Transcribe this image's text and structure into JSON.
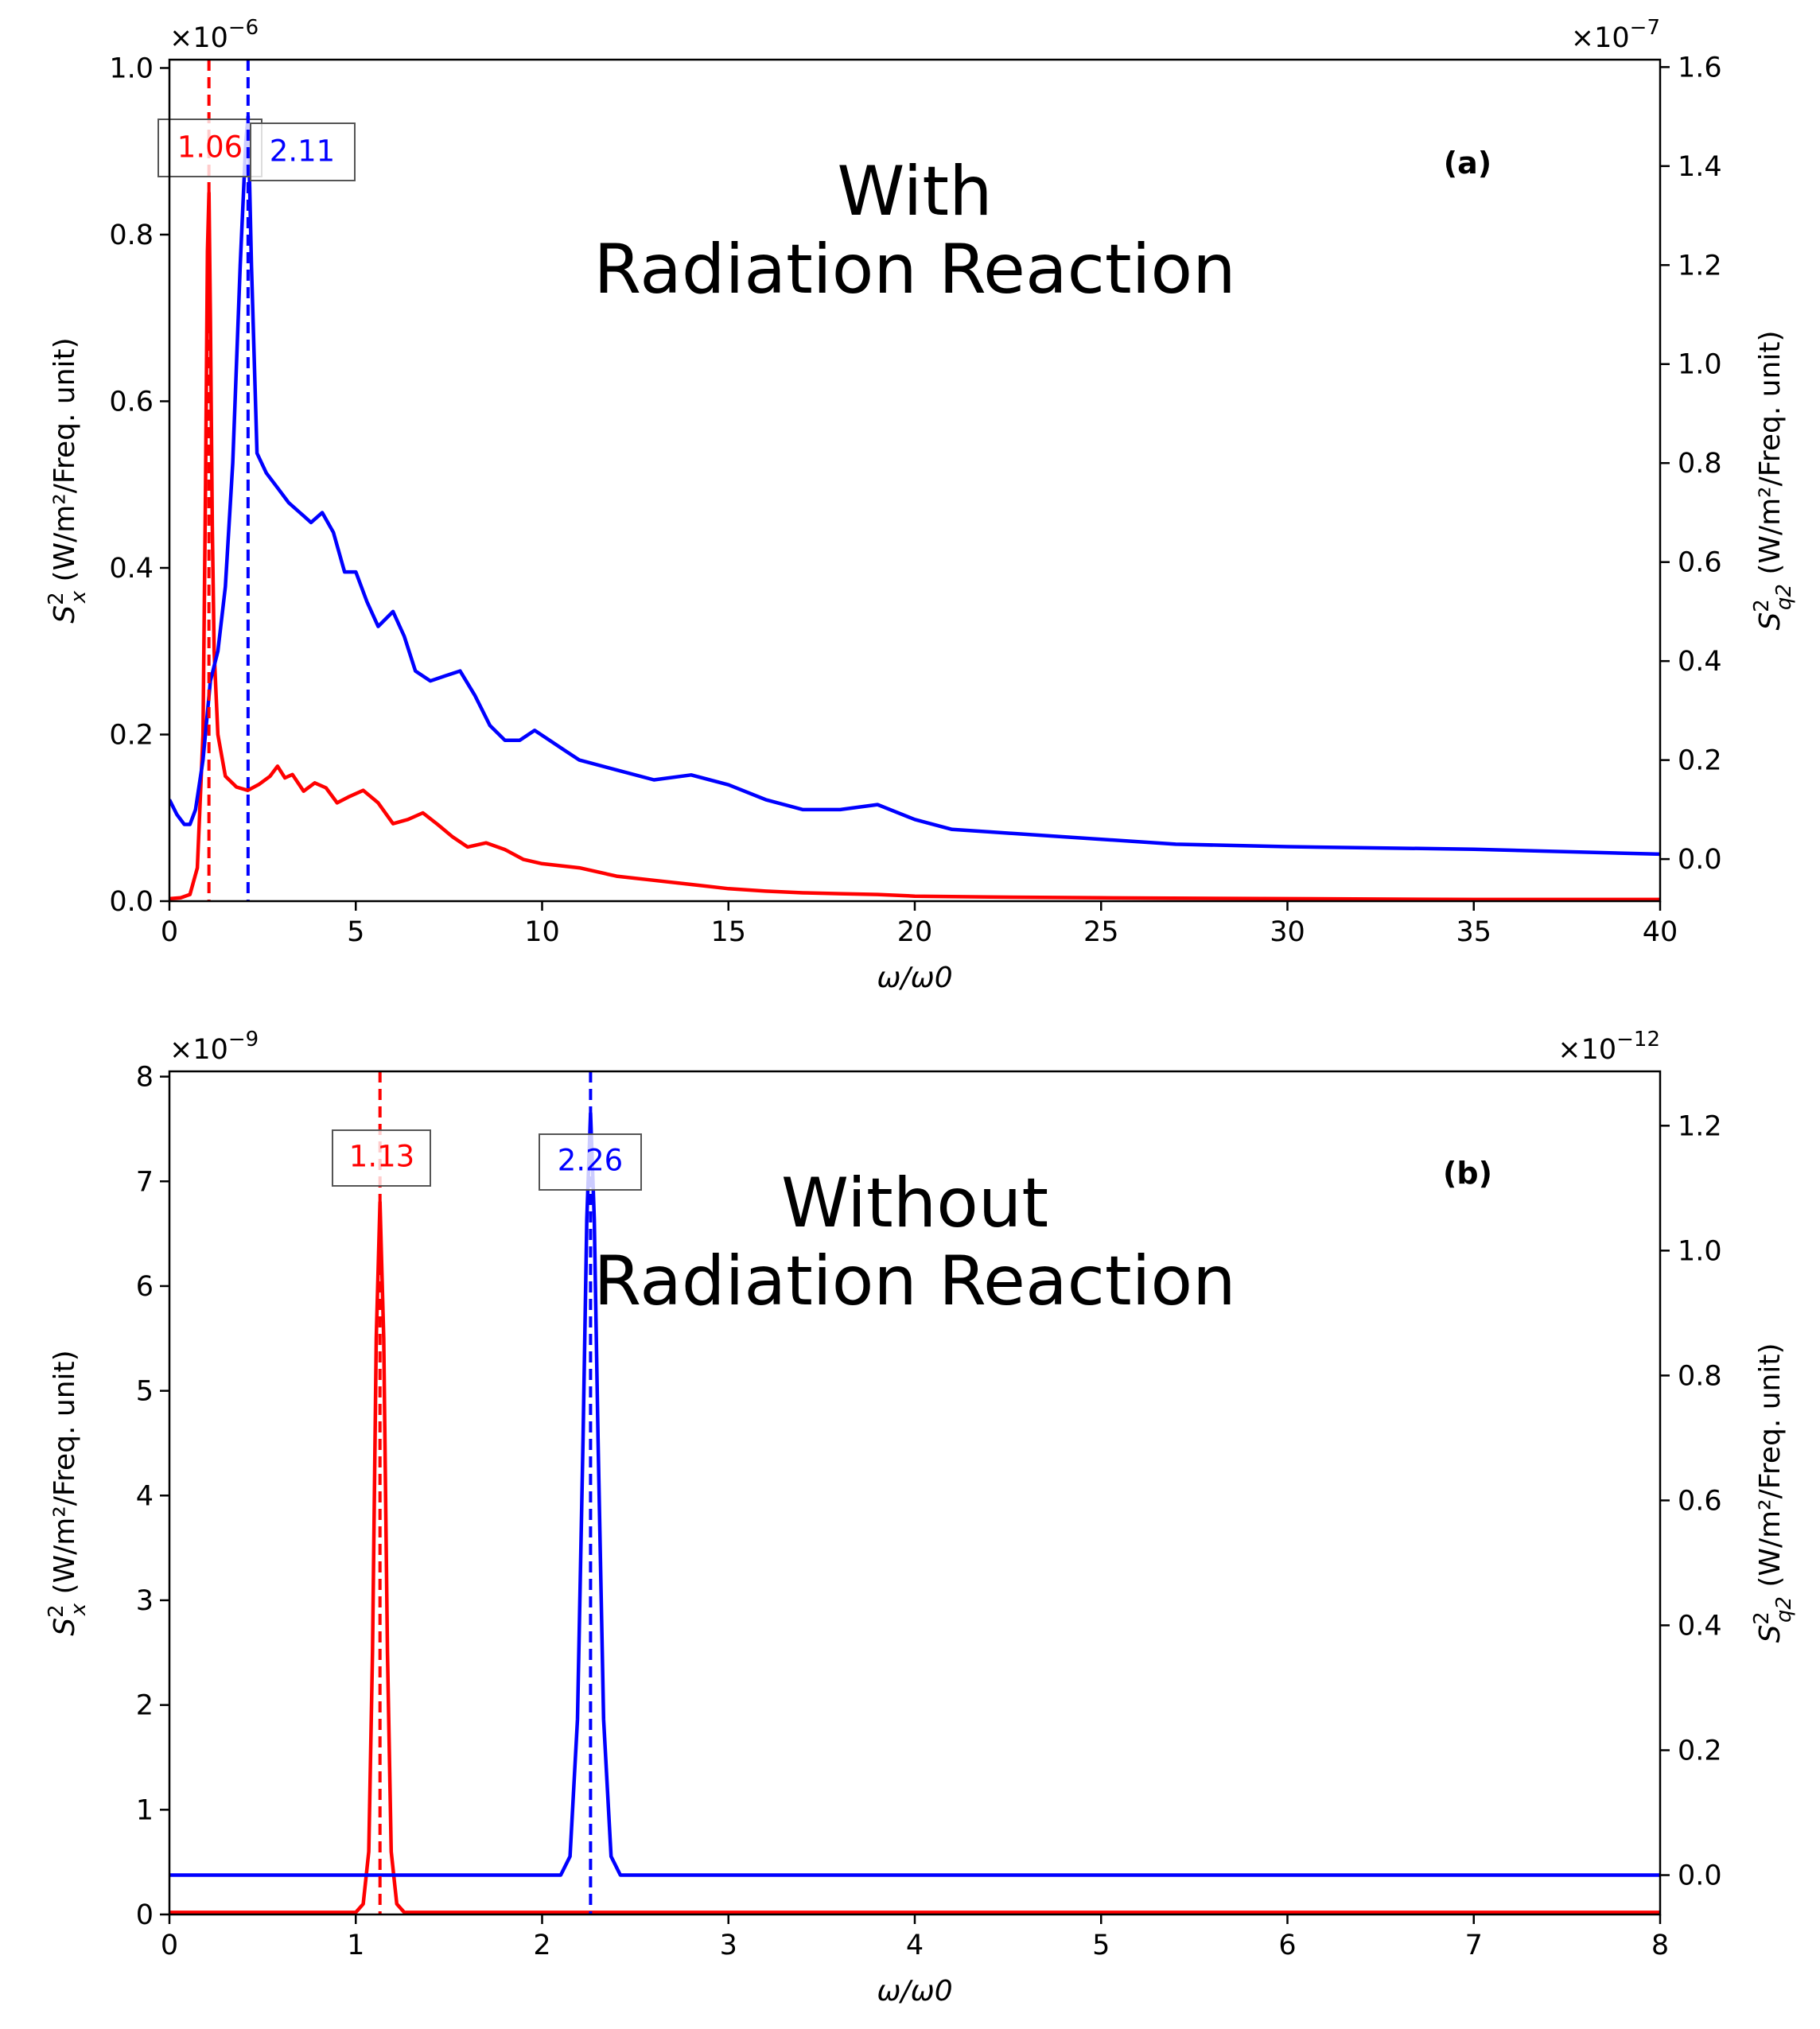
{
  "chart_data": [
    {
      "type": "line",
      "panel_label": "(a)",
      "annotation_lines": [
        "With",
        "Radiation Reaction"
      ],
      "xlabel": "ω/ω0",
      "x_ticks": [
        "0",
        "5",
        "10",
        "15",
        "20",
        "25",
        "30",
        "35",
        "40"
      ],
      "xlim": [
        0,
        40
      ],
      "y_left": {
        "label_prefix": "S",
        "label_sup": "2",
        "label_sub": "x",
        "label_units": " (W/m²/Freq. unit)",
        "multiplier": "×10",
        "multiplier_exp": "−6",
        "ylim": [
          0,
          1.01
        ],
        "ticks": [
          "0.0",
          "0.2",
          "0.4",
          "0.6",
          "0.8",
          "1.0"
        ],
        "color": "#ff0000"
      },
      "y_right": {
        "label_prefix": "S",
        "label_sup": "2",
        "label_sub": "q2",
        "label_units": " (W/m²/Freq. unit)",
        "multiplier": "×10",
        "multiplier_exp": "−7",
        "ylim": [
          -0.085,
          1.615
        ],
        "ticks": [
          "0.0",
          "0.2",
          "0.4",
          "0.6",
          "0.8",
          "1.0",
          "1.2",
          "1.4",
          "1.6"
        ],
        "color": "#0000ff"
      },
      "series": [
        {
          "axis": "left",
          "color": "#ff0000",
          "x": [
            0,
            0.3,
            0.55,
            0.75,
            0.9,
            0.97,
            1.02,
            1.06,
            1.1,
            1.15,
            1.2,
            1.3,
            1.5,
            1.8,
            2.1,
            2.4,
            2.7,
            2.9,
            3.1,
            3.3,
            3.6,
            3.9,
            4.2,
            4.5,
            4.8,
            5.2,
            5.6,
            6.0,
            6.4,
            6.8,
            7.2,
            7.6,
            8.0,
            8.5,
            9.0,
            9.5,
            10.0,
            11.0,
            12.0,
            13.0,
            14.0,
            15.0,
            16.0,
            17.0,
            18.0,
            19.0,
            20.0,
            22.0,
            25.0,
            30.0,
            35.0,
            40.0
          ],
          "y": [
            0.003,
            0.004,
            0.008,
            0.04,
            0.2,
            0.5,
            0.78,
            0.85,
            0.7,
            0.45,
            0.3,
            0.2,
            0.15,
            0.137,
            0.133,
            0.14,
            0.15,
            0.162,
            0.148,
            0.152,
            0.132,
            0.142,
            0.136,
            0.118,
            0.125,
            0.133,
            0.118,
            0.093,
            0.098,
            0.106,
            0.092,
            0.077,
            0.065,
            0.07,
            0.062,
            0.05,
            0.045,
            0.04,
            0.03,
            0.025,
            0.02,
            0.015,
            0.012,
            0.01,
            0.009,
            0.008,
            0.006,
            0.005,
            0.004,
            0.003,
            0.002,
            0.002
          ]
        },
        {
          "axis": "right",
          "color": "#0000ff",
          "x": [
            0,
            0.2,
            0.4,
            0.55,
            0.7,
            0.9,
            1.1,
            1.3,
            1.5,
            1.7,
            1.9,
            2.05,
            2.11,
            2.2,
            2.35,
            2.6,
            2.9,
            3.2,
            3.5,
            3.8,
            4.1,
            4.4,
            4.7,
            5.0,
            5.3,
            5.6,
            6.0,
            6.3,
            6.6,
            7.0,
            7.4,
            7.8,
            8.2,
            8.6,
            9.0,
            9.4,
            9.8,
            10.2,
            10.6,
            11.0,
            12.0,
            13.0,
            14.0,
            15.0,
            16.0,
            17.0,
            18.0,
            19.0,
            20.0,
            21.0,
            22.0,
            24.0,
            27.0,
            30.0,
            35.0,
            40.0
          ],
          "y": [
            0.12,
            0.09,
            0.07,
            0.07,
            0.1,
            0.2,
            0.36,
            0.42,
            0.55,
            0.8,
            1.2,
            1.45,
            1.5,
            1.2,
            0.82,
            0.78,
            0.75,
            0.72,
            0.7,
            0.68,
            0.7,
            0.66,
            0.58,
            0.58,
            0.52,
            0.47,
            0.5,
            0.45,
            0.38,
            0.36,
            0.37,
            0.38,
            0.33,
            0.27,
            0.24,
            0.24,
            0.26,
            0.24,
            0.22,
            0.2,
            0.18,
            0.16,
            0.17,
            0.15,
            0.12,
            0.1,
            0.1,
            0.11,
            0.08,
            0.06,
            0.055,
            0.045,
            0.03,
            0.025,
            0.02,
            0.01
          ]
        }
      ],
      "vlines": [
        {
          "x": 1.06,
          "axis": "left",
          "color": "#ff0000",
          "label": "1.06"
        },
        {
          "x": 2.11,
          "axis": "left",
          "color": "#0000ff",
          "label": "2.11"
        }
      ]
    },
    {
      "type": "line",
      "panel_label": "(b)",
      "annotation_lines": [
        "Without",
        "Radiation Reaction"
      ],
      "xlabel": "ω/ω0",
      "x_ticks": [
        "0",
        "1",
        "2",
        "3",
        "4",
        "5",
        "6",
        "7",
        "8"
      ],
      "xlim": [
        0,
        8
      ],
      "y_left": {
        "label_prefix": "S",
        "label_sup": "2",
        "label_sub": "x",
        "label_units": " (W/m²/Freq. unit)",
        "multiplier": "×10",
        "multiplier_exp": "−9",
        "ylim": [
          0,
          8.05
        ],
        "ticks": [
          "0",
          "1",
          "2",
          "3",
          "4",
          "5",
          "6",
          "7",
          "8"
        ],
        "color": "#ff0000"
      },
      "y_right": {
        "label_prefix": "S",
        "label_sup": "2",
        "label_sub": "q2",
        "label_units": " (W/m²/Freq. unit)",
        "multiplier": "×10",
        "multiplier_exp": "−12",
        "ylim": [
          -0.063,
          1.287
        ],
        "ticks": [
          "0.0",
          "0.2",
          "0.4",
          "0.6",
          "0.8",
          "1.0",
          "1.2"
        ],
        "color": "#0000ff"
      },
      "series": [
        {
          "axis": "left",
          "color": "#ff0000",
          "x": [
            0,
            1.0,
            1.04,
            1.07,
            1.09,
            1.11,
            1.13,
            1.15,
            1.17,
            1.19,
            1.22,
            1.26,
            2.0,
            4.0,
            6.0,
            8.0
          ],
          "y": [
            0.02,
            0.02,
            0.1,
            0.6,
            2.5,
            5.5,
            6.8,
            5.5,
            2.5,
            0.6,
            0.1,
            0.02,
            0.02,
            0.02,
            0.02,
            0.02
          ]
        },
        {
          "axis": "right",
          "color": "#0000ff",
          "x": [
            0,
            2.1,
            2.15,
            2.19,
            2.22,
            2.24,
            2.26,
            2.28,
            2.3,
            2.33,
            2.37,
            2.42,
            3.0,
            5.0,
            8.0
          ],
          "y": [
            0.0,
            0.0,
            0.03,
            0.25,
            0.7,
            1.05,
            1.22,
            1.05,
            0.7,
            0.25,
            0.03,
            0.0,
            0.0,
            0.0,
            0.0
          ]
        }
      ],
      "vlines": [
        {
          "x": 1.13,
          "axis": "left",
          "color": "#ff0000",
          "label": "1.13"
        },
        {
          "x": 2.26,
          "axis": "left",
          "color": "#0000ff",
          "label": "2.26"
        }
      ]
    }
  ]
}
